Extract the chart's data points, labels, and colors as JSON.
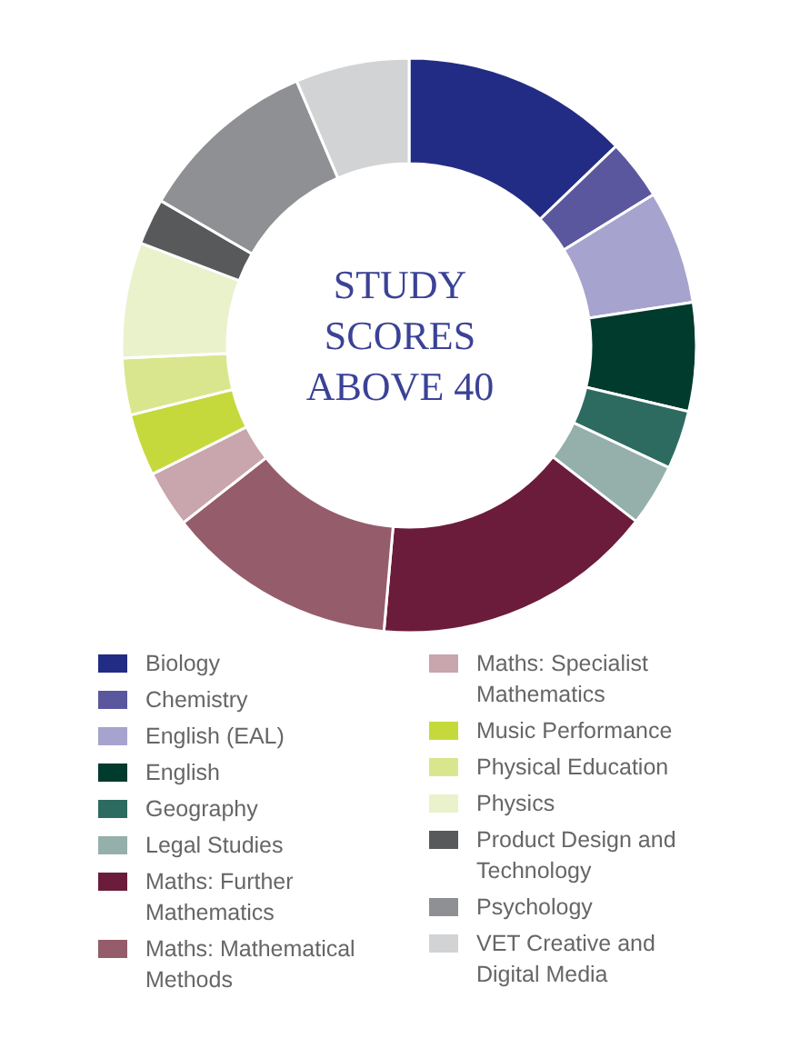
{
  "chart_data": {
    "type": "donut",
    "title": "STUDY SCORES ABOVE 40",
    "categories": [
      "Biology",
      "Chemistry",
      "English (EAL)",
      "English",
      "Geography",
      "Legal Studies",
      "Maths: Further Mathematics",
      "Maths: Mathematical Methods",
      "Maths: Specialist Mathematics",
      "Music Performance",
      "Physical Education",
      "Physics",
      "Product Design and Technology",
      "Psychology",
      "VET Creative and Digital Media"
    ],
    "values": [
      12.8,
      3.4,
      6.4,
      6.1,
      3.3,
      3.5,
      15.9,
      13.0,
      3.2,
      3.5,
      3.2,
      6.5,
      2.6,
      10.2,
      6.4
    ],
    "colors": [
      "#232c84",
      "#5a579e",
      "#a6a3cf",
      "#003b2e",
      "#2d6b60",
      "#95b0aa",
      "#6b1c3a",
      "#955c6c",
      "#c9a5ad",
      "#c5d93c",
      "#dae68e",
      "#eaf2cc",
      "#58595b",
      "#8f9093",
      "#d1d3d4"
    ],
    "legend": "bottom"
  }
}
